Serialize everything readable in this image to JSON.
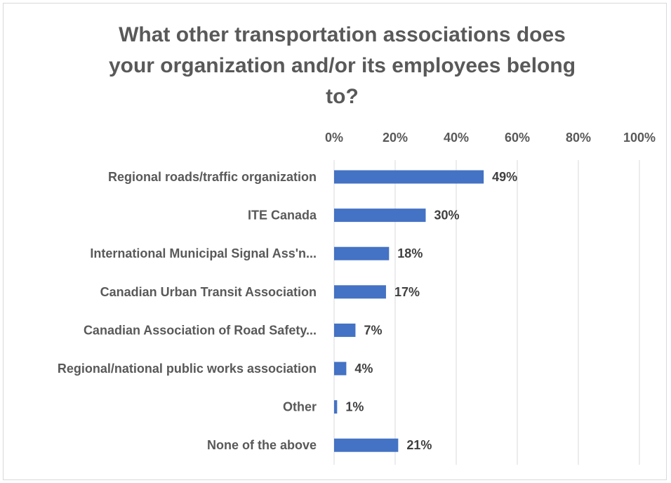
{
  "chart_data": {
    "type": "bar",
    "orientation": "horizontal",
    "title_lines": [
      "What other transportation associations does",
      "your organization and/or its employees belong",
      "to?"
    ],
    "categories": [
      "Regional roads/traffic organization",
      "ITE Canada",
      "International Municipal Signal Ass'n...",
      "Canadian Urban Transit Association",
      "Canadian Association of Road Safety...",
      "Regional/national public works association",
      "Other",
      "None of the above"
    ],
    "values": [
      49,
      30,
      18,
      17,
      7,
      4,
      1,
      21
    ],
    "data_labels": [
      "49%",
      "30%",
      "18%",
      "17%",
      "7%",
      "4%",
      "1%",
      "21%"
    ],
    "x_ticks": [
      "0%",
      "20%",
      "40%",
      "60%",
      "80%",
      "100%"
    ],
    "xlim": [
      0,
      100
    ],
    "axis_position": "top",
    "grid": true,
    "bar_color": "#4472c4"
  }
}
